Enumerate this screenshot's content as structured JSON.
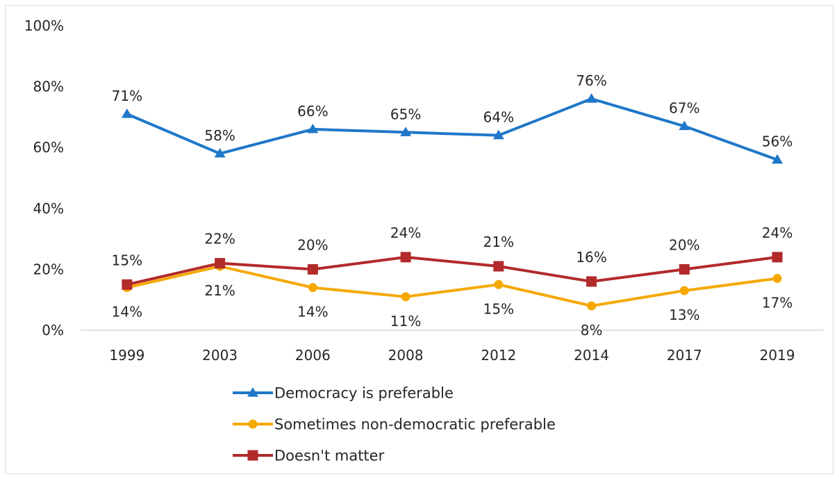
{
  "chart_data": {
    "type": "line",
    "title": "",
    "xlabel": "",
    "ylabel": "",
    "categories": [
      "1999",
      "2003",
      "2006",
      "2008",
      "2012",
      "2014",
      "2017",
      "2019"
    ],
    "ylim": [
      0,
      100
    ],
    "y_ticks": [
      "0%",
      "20%",
      "40%",
      "60%",
      "80%",
      "100%"
    ],
    "grid": false,
    "legend_position": "bottom",
    "series": [
      {
        "name": "Democracy is preferable",
        "values": [
          71,
          58,
          66,
          65,
          64,
          76,
          67,
          56
        ],
        "labels": [
          "71%",
          "58%",
          "66%",
          "65%",
          "64%",
          "76%",
          "67%",
          "56%"
        ],
        "color": "#1f77c9",
        "marker": "triangle"
      },
      {
        "name": "Sometimes non-democratic preferable",
        "values": [
          14,
          21,
          14,
          11,
          15,
          8,
          13,
          17
        ],
        "labels": [
          "14%",
          "21%",
          "14%",
          "11%",
          "15%",
          "8%",
          "13%",
          "17%"
        ],
        "color": "#f5a800",
        "marker": "circle"
      },
      {
        "name": "Doesn't matter",
        "values": [
          15,
          22,
          20,
          24,
          21,
          16,
          20,
          24
        ],
        "labels": [
          "15%",
          "22%",
          "20%",
          "24%",
          "21%",
          "16%",
          "20%",
          "24%"
        ],
        "color": "#b22a2a",
        "marker": "square"
      }
    ]
  }
}
